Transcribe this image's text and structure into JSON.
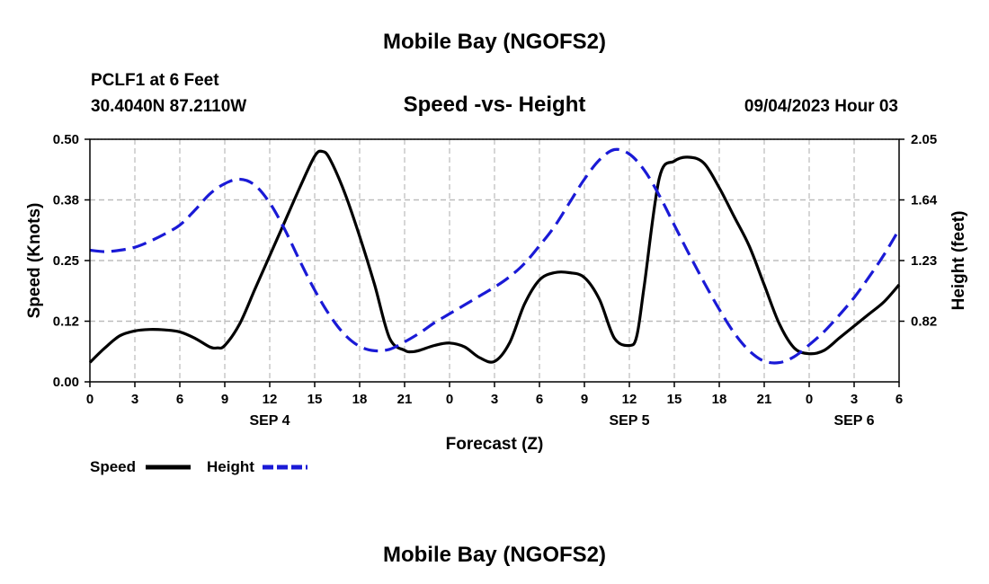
{
  "chart_data": {
    "type": "line",
    "title": "Mobile Bay (NGOFS2)",
    "subtitle": "Speed -vs- Height",
    "station": "PCLF1 at 6 Feet",
    "location": "30.4040N  87.2110W",
    "datetime": "09/04/2023 Hour 03",
    "footer_title": "Mobile Bay (NGOFS2)",
    "xlabel": "Forecast (Z)",
    "ylabel_left": "Speed (Knots)",
    "ylabel_right": "Height (feet)",
    "x_range": [
      0,
      54
    ],
    "x_ticks": [
      0,
      3,
      6,
      9,
      12,
      15,
      18,
      21,
      24,
      27,
      30,
      33,
      36,
      39,
      42,
      45,
      48,
      51,
      54
    ],
    "x_tick_labels": [
      "0",
      "3",
      "6",
      "9",
      "12",
      "15",
      "18",
      "21",
      "0",
      "3",
      "6",
      "9",
      "12",
      "15",
      "18",
      "21",
      "0",
      "3",
      "6"
    ],
    "date_labels": [
      {
        "hour": 12,
        "label": "SEP 4"
      },
      {
        "hour": 36,
        "label": "SEP 5"
      },
      {
        "hour": 51,
        "label": "SEP 6"
      }
    ],
    "ylim_left": [
      0,
      0.5
    ],
    "yticks_left": [
      0.0,
      0.125,
      0.25,
      0.375,
      0.5
    ],
    "ytick_labels_left": [
      "0.00",
      "0.12",
      "0.25",
      "0.38",
      "0.50"
    ],
    "ylim_right": [
      0.41,
      2.05
    ],
    "yticks_right": [
      0.82,
      1.23,
      1.64,
      2.05
    ],
    "ytick_labels_right": [
      "0.82",
      "1.23",
      "1.64",
      "2.05"
    ],
    "grid": true,
    "legend_position": "bottom-left",
    "series": [
      {
        "name": "Speed",
        "axis": "left",
        "color": "#000000",
        "dash": "solid",
        "x": [
          0,
          1,
          2,
          3,
          4,
          5,
          6,
          7,
          8,
          8.5,
          9,
          10,
          11,
          12,
          13,
          14,
          15,
          15.5,
          16,
          17,
          18,
          19,
          20,
          21,
          21.5,
          22,
          23,
          24,
          25,
          26,
          27,
          28,
          29,
          30,
          31,
          32,
          33,
          34,
          35,
          36,
          36.5,
          37,
          38,
          39,
          40,
          41,
          42,
          43,
          44,
          45,
          46,
          47,
          48,
          49,
          50,
          51,
          52,
          53,
          54
        ],
        "values": [
          0.04,
          0.07,
          0.095,
          0.105,
          0.108,
          0.107,
          0.103,
          0.09,
          0.072,
          0.07,
          0.075,
          0.12,
          0.19,
          0.26,
          0.33,
          0.4,
          0.465,
          0.475,
          0.46,
          0.39,
          0.3,
          0.2,
          0.09,
          0.065,
          0.062,
          0.065,
          0.075,
          0.08,
          0.072,
          0.05,
          0.042,
          0.08,
          0.16,
          0.21,
          0.225,
          0.225,
          0.215,
          0.17,
          0.09,
          0.075,
          0.095,
          0.2,
          0.42,
          0.455,
          0.463,
          0.45,
          0.4,
          0.34,
          0.28,
          0.2,
          0.12,
          0.07,
          0.058,
          0.065,
          0.09,
          0.115,
          0.14,
          0.165,
          0.2
        ]
      },
      {
        "name": "Height",
        "axis": "right",
        "color": "#1a1ad6",
        "dash": "dashed",
        "x": [
          0,
          1,
          2,
          3,
          4,
          5,
          6,
          7,
          8,
          9,
          10,
          11,
          12,
          13,
          14,
          15,
          16,
          17,
          18,
          19,
          20,
          21,
          22,
          23,
          24,
          25,
          26,
          27,
          28,
          29,
          30,
          31,
          32,
          33,
          34,
          35,
          36,
          37,
          38,
          39,
          40,
          41,
          42,
          43,
          44,
          45,
          46,
          47,
          48,
          49,
          50,
          51,
          52,
          53,
          54
        ],
        "values": [
          1.3,
          1.29,
          1.3,
          1.32,
          1.36,
          1.41,
          1.47,
          1.57,
          1.68,
          1.75,
          1.78,
          1.74,
          1.62,
          1.44,
          1.23,
          1.03,
          0.86,
          0.73,
          0.65,
          0.62,
          0.63,
          0.68,
          0.74,
          0.81,
          0.87,
          0.93,
          0.99,
          1.05,
          1.12,
          1.21,
          1.33,
          1.46,
          1.62,
          1.78,
          1.91,
          1.98,
          1.95,
          1.84,
          1.67,
          1.47,
          1.27,
          1.08,
          0.9,
          0.74,
          0.62,
          0.55,
          0.54,
          0.58,
          0.66,
          0.75,
          0.86,
          0.98,
          1.12,
          1.27,
          1.44
        ]
      }
    ]
  }
}
